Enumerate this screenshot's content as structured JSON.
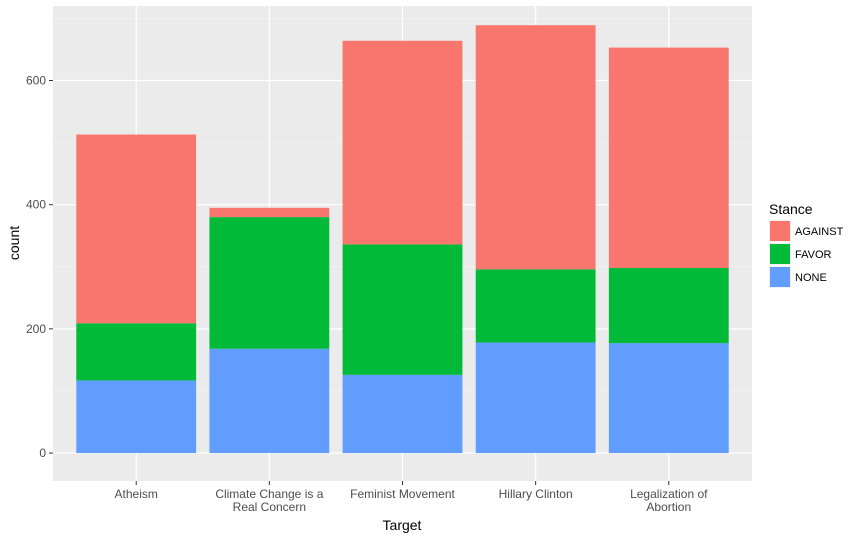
{
  "chart_data": {
    "type": "bar",
    "stacked": true,
    "xlabel": "Target",
    "ylabel": "count",
    "ylim": [
      -45,
      720
    ],
    "yticks": [
      0,
      200,
      400,
      600
    ],
    "categories": [
      [
        "Atheism"
      ],
      [
        "Climate Change is a",
        "Real Concern"
      ],
      [
        "Feminist Movement"
      ],
      [
        "Hillary Clinton"
      ],
      [
        "Legalization of",
        "Abortion"
      ]
    ],
    "series": [
      {
        "name": "AGAINST",
        "color": "#F8766D",
        "values": [
          304,
          15,
          328,
          393,
          355
        ]
      },
      {
        "name": "FAVOR",
        "color": "#00BA38",
        "values": [
          92,
          212,
          210,
          118,
          121
        ]
      },
      {
        "name": "NONE",
        "color": "#619CFF",
        "values": [
          117,
          168,
          126,
          178,
          177
        ]
      }
    ],
    "stack_order_bottom_to_top": [
      "NONE",
      "FAVOR",
      "AGAINST"
    ],
    "legend": {
      "title": "Stance",
      "position": "right"
    },
    "grid": true,
    "background": "#EBEBEB"
  }
}
